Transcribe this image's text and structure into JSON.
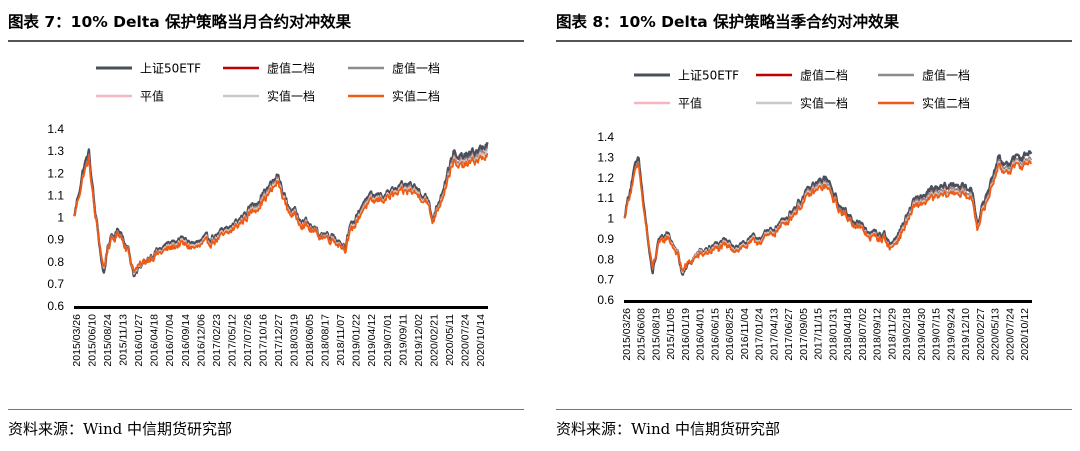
{
  "figures": [
    {
      "title": "图表 7：10% Delta 保护策略当月合约对冲效果",
      "source": "资料来源：Wind 中信期货研究部"
    },
    {
      "title": "图表 8：10% Delta 保护策略当季合约对冲效果",
      "source": "资料来源：Wind 中信期货研究部"
    }
  ],
  "chart_data": [
    {
      "type": "line",
      "title": "图表 7：10% Delta 保护策略当月合约对冲效果",
      "xlabel": "",
      "ylabel": "",
      "ylim": [
        0.6,
        1.4
      ],
      "yticks": [
        "0.6",
        "0.7",
        "0.8",
        "0.9",
        "1",
        "1.1",
        "1.2",
        "1.3",
        "1.4"
      ],
      "xticks": [
        "2015/03/26",
        "2015/06/10",
        "2015/08/24",
        "2015/11/13",
        "2016/01/27",
        "2016/04/18",
        "2016/07/04",
        "2016/09/14",
        "2016/12/06",
        "2017/02/23",
        "2017/05/12",
        "2017/07/26",
        "2017/10/16",
        "2017/12/27",
        "2018/03/19",
        "2018/06/05",
        "2018/08/17",
        "2018/11/07",
        "2019/01/22",
        "2019/04/12",
        "2019/07/01",
        "2019/09/11",
        "2019/12/02",
        "2020/02/21",
        "2020/05/11",
        "2020/07/24",
        "2020/10/14"
      ],
      "legend_position": "top",
      "x": [
        "2015/03/26",
        "2015/05/15",
        "2015/06/10",
        "2015/07/08",
        "2015/08/24",
        "2015/09/15",
        "2015/11/13",
        "2015/12/25",
        "2016/01/27",
        "2016/04/18",
        "2016/07/04",
        "2016/09/14",
        "2016/12/06",
        "2017/02/23",
        "2017/05/12",
        "2017/07/26",
        "2017/10/16",
        "2017/12/27",
        "2018/01/25",
        "2018/03/19",
        "2018/06/05",
        "2018/08/17",
        "2018/11/07",
        "2019/01/03",
        "2019/01/22",
        "2019/04/12",
        "2019/07/01",
        "2019/09/11",
        "2019/12/02",
        "2020/02/21",
        "2020/03/23",
        "2020/05/11",
        "2020/07/09",
        "2020/07/24",
        "2020/10/14",
        "2020/12/31"
      ],
      "series": [
        {
          "name": "上证50ETF",
          "color": "#4a4f5c",
          "width": 2.4,
          "values": [
            1.0,
            1.23,
            1.29,
            1.05,
            0.74,
            0.88,
            0.95,
            0.86,
            0.74,
            0.83,
            0.87,
            0.9,
            0.88,
            0.91,
            0.94,
            1.0,
            1.08,
            1.15,
            1.19,
            1.05,
            0.99,
            0.93,
            0.92,
            0.87,
            0.93,
            1.08,
            1.1,
            1.12,
            1.15,
            1.1,
            0.99,
            1.12,
            1.3,
            1.26,
            1.29,
            1.33
          ]
        },
        {
          "name": "虚值二档",
          "color": "#c00000",
          "width": 1.4,
          "values": [
            1.0,
            1.21,
            1.27,
            1.04,
            0.76,
            0.88,
            0.94,
            0.86,
            0.75,
            0.83,
            0.86,
            0.89,
            0.87,
            0.9,
            0.93,
            0.99,
            1.07,
            1.14,
            1.18,
            1.04,
            0.98,
            0.93,
            0.91,
            0.87,
            0.92,
            1.07,
            1.09,
            1.11,
            1.14,
            1.09,
            0.99,
            1.11,
            1.28,
            1.24,
            1.27,
            1.31
          ]
        },
        {
          "name": "虚值一档",
          "color": "#8c8c8c",
          "width": 1.2,
          "values": [
            1.0,
            1.21,
            1.27,
            1.04,
            0.76,
            0.88,
            0.94,
            0.86,
            0.75,
            0.83,
            0.86,
            0.89,
            0.87,
            0.9,
            0.93,
            0.99,
            1.07,
            1.14,
            1.18,
            1.04,
            0.98,
            0.93,
            0.91,
            0.87,
            0.92,
            1.07,
            1.09,
            1.11,
            1.14,
            1.09,
            0.99,
            1.11,
            1.28,
            1.24,
            1.27,
            1.31
          ]
        },
        {
          "name": "平值",
          "color": "#f4b6c2",
          "width": 1.2,
          "values": [
            1.0,
            1.2,
            1.26,
            1.04,
            0.76,
            0.87,
            0.93,
            0.85,
            0.75,
            0.82,
            0.86,
            0.89,
            0.87,
            0.9,
            0.93,
            0.99,
            1.06,
            1.13,
            1.17,
            1.04,
            0.98,
            0.92,
            0.91,
            0.86,
            0.92,
            1.06,
            1.09,
            1.11,
            1.13,
            1.09,
            0.98,
            1.1,
            1.27,
            1.23,
            1.26,
            1.3
          ]
        },
        {
          "name": "实值一档",
          "color": "#c8c8c8",
          "width": 1.2,
          "values": [
            1.0,
            1.2,
            1.26,
            1.04,
            0.76,
            0.87,
            0.93,
            0.85,
            0.75,
            0.82,
            0.86,
            0.89,
            0.87,
            0.9,
            0.93,
            0.99,
            1.06,
            1.13,
            1.17,
            1.04,
            0.98,
            0.92,
            0.91,
            0.86,
            0.92,
            1.06,
            1.09,
            1.11,
            1.13,
            1.09,
            0.98,
            1.1,
            1.27,
            1.23,
            1.26,
            1.3
          ]
        },
        {
          "name": "实值二档",
          "color": "#f05a14",
          "width": 1.8,
          "values": [
            1.0,
            1.2,
            1.26,
            1.03,
            0.77,
            0.87,
            0.93,
            0.85,
            0.76,
            0.82,
            0.85,
            0.88,
            0.86,
            0.89,
            0.92,
            0.98,
            1.05,
            1.12,
            1.16,
            1.03,
            0.97,
            0.92,
            0.9,
            0.86,
            0.91,
            1.05,
            1.08,
            1.1,
            1.12,
            1.08,
            0.98,
            1.09,
            1.26,
            1.22,
            1.25,
            1.28
          ]
        }
      ]
    },
    {
      "type": "line",
      "title": "图表 8：10% Delta 保护策略当季合约对冲效果",
      "xlabel": "",
      "ylabel": "",
      "ylim": [
        0.6,
        1.4
      ],
      "yticks": [
        "0.6",
        "0.7",
        "0.8",
        "0.9",
        "1",
        "1.1",
        "1.2",
        "1.3",
        "1.4"
      ],
      "xticks": [
        "2015/03/26",
        "2015/06/08",
        "2015/08/19",
        "2015/11/05",
        "2016/01/19",
        "2016/04/01",
        "2016/06/15",
        "2016/08/25",
        "2016/11/04",
        "2017/01/24",
        "2017/04/13",
        "2017/06/27",
        "2017/09/05",
        "2017/11/15",
        "2018/01/31",
        "2018/04/18",
        "2018/07/02",
        "2018/09/12",
        "2018/11/29",
        "2019/02/18",
        "2019/04/30",
        "2019/07/15",
        "2019/09/24",
        "2019/12/10",
        "2020/02/27",
        "2020/05/13",
        "2020/07/24",
        "2020/10/12"
      ],
      "legend_position": "top",
      "x": [
        "2015/03/26",
        "2015/05/15",
        "2015/06/08",
        "2015/07/08",
        "2015/08/19",
        "2015/09/15",
        "2015/11/05",
        "2015/12/25",
        "2016/01/19",
        "2016/04/01",
        "2016/06/15",
        "2016/08/25",
        "2016/11/04",
        "2017/01/24",
        "2017/04/13",
        "2017/06/27",
        "2017/09/05",
        "2017/11/15",
        "2018/01/31",
        "2018/04/18",
        "2018/07/02",
        "2018/09/12",
        "2018/11/29",
        "2019/01/03",
        "2019/02/18",
        "2019/04/30",
        "2019/07/15",
        "2019/09/24",
        "2019/12/10",
        "2020/02/27",
        "2020/03/23",
        "2020/05/13",
        "2020/07/09",
        "2020/07/24",
        "2020/10/12",
        "2020/12/31"
      ],
      "series": [
        {
          "name": "上证50ETF",
          "color": "#4a4f5c",
          "width": 2.4,
          "values": [
            1.0,
            1.23,
            1.29,
            1.05,
            0.72,
            0.87,
            0.93,
            0.84,
            0.73,
            0.82,
            0.86,
            0.88,
            0.87,
            0.9,
            0.93,
            0.99,
            1.07,
            1.15,
            1.2,
            1.05,
            0.99,
            0.93,
            0.92,
            0.87,
            0.94,
            1.08,
            1.13,
            1.15,
            1.17,
            1.13,
            0.98,
            1.12,
            1.3,
            1.27,
            1.29,
            1.33
          ]
        },
        {
          "name": "虚值二档",
          "color": "#c00000",
          "width": 1.4,
          "values": [
            1.0,
            1.21,
            1.27,
            1.04,
            0.74,
            0.86,
            0.92,
            0.84,
            0.74,
            0.82,
            0.85,
            0.87,
            0.86,
            0.89,
            0.92,
            0.98,
            1.06,
            1.14,
            1.18,
            1.04,
            0.98,
            0.92,
            0.91,
            0.86,
            0.93,
            1.07,
            1.11,
            1.13,
            1.15,
            1.11,
            0.97,
            1.1,
            1.28,
            1.25,
            1.27,
            1.3
          ]
        },
        {
          "name": "虚值一档",
          "color": "#8c8c8c",
          "width": 1.2,
          "values": [
            1.0,
            1.21,
            1.27,
            1.04,
            0.74,
            0.86,
            0.92,
            0.84,
            0.74,
            0.82,
            0.85,
            0.87,
            0.86,
            0.89,
            0.92,
            0.98,
            1.06,
            1.14,
            1.18,
            1.04,
            0.98,
            0.92,
            0.91,
            0.86,
            0.93,
            1.07,
            1.11,
            1.13,
            1.15,
            1.11,
            0.97,
            1.1,
            1.28,
            1.25,
            1.27,
            1.3
          ]
        },
        {
          "name": "平值",
          "color": "#f4b6c2",
          "width": 1.2,
          "values": [
            1.0,
            1.2,
            1.26,
            1.03,
            0.75,
            0.86,
            0.92,
            0.84,
            0.74,
            0.82,
            0.85,
            0.87,
            0.86,
            0.89,
            0.92,
            0.98,
            1.05,
            1.13,
            1.17,
            1.03,
            0.97,
            0.92,
            0.9,
            0.86,
            0.92,
            1.06,
            1.1,
            1.12,
            1.14,
            1.1,
            0.97,
            1.09,
            1.27,
            1.24,
            1.26,
            1.29
          ]
        },
        {
          "name": "实值一档",
          "color": "#c8c8c8",
          "width": 1.2,
          "values": [
            1.0,
            1.2,
            1.26,
            1.03,
            0.75,
            0.86,
            0.92,
            0.84,
            0.74,
            0.82,
            0.85,
            0.87,
            0.86,
            0.89,
            0.92,
            0.98,
            1.05,
            1.13,
            1.17,
            1.03,
            0.97,
            0.92,
            0.9,
            0.86,
            0.92,
            1.06,
            1.1,
            1.12,
            1.14,
            1.1,
            0.97,
            1.09,
            1.27,
            1.24,
            1.26,
            1.29
          ]
        },
        {
          "name": "实值二档",
          "color": "#f05a14",
          "width": 1.8,
          "values": [
            1.0,
            1.2,
            1.26,
            1.03,
            0.75,
            0.86,
            0.91,
            0.83,
            0.75,
            0.81,
            0.84,
            0.86,
            0.85,
            0.88,
            0.91,
            0.97,
            1.04,
            1.12,
            1.16,
            1.03,
            0.97,
            0.91,
            0.9,
            0.85,
            0.91,
            1.05,
            1.09,
            1.11,
            1.13,
            1.09,
            0.96,
            1.08,
            1.26,
            1.23,
            1.25,
            1.28
          ]
        }
      ]
    }
  ]
}
